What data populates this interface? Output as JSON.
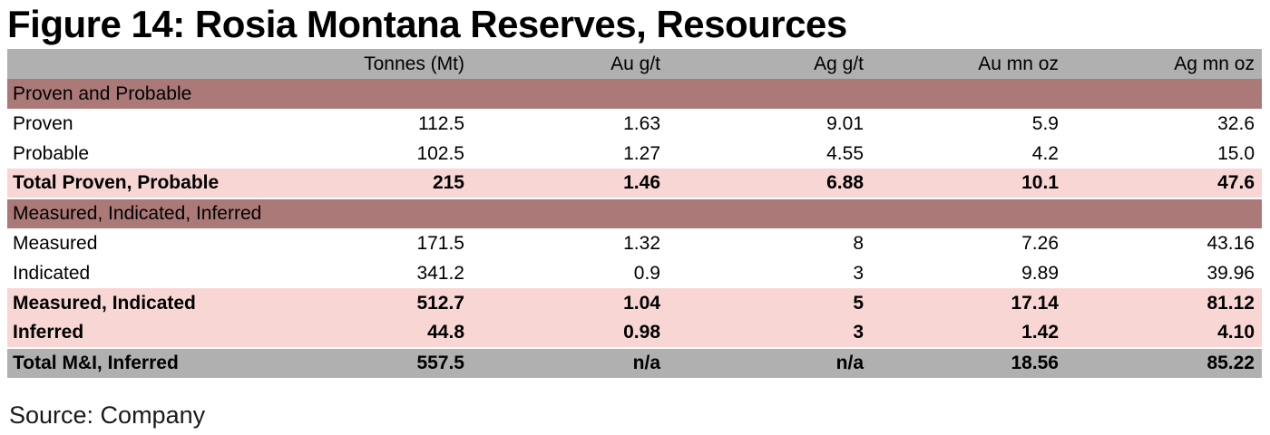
{
  "title": "Figure 14: Rosia Montana Reserves, Resources",
  "source": "Source: Company",
  "colors": {
    "header_gray": "#b0b0b0",
    "section_mauve": "#ab7a78",
    "total_pink": "#f8d6d4",
    "total_gray": "#b0b0b0",
    "text": "#000000"
  },
  "chart_data": {
    "type": "table",
    "title": "Figure 14: Rosia Montana Reserves, Resources",
    "columns": [
      "",
      "Tonnes (Mt)",
      "Au g/t",
      "Ag g/t",
      "Au mn oz",
      "Ag mn oz"
    ],
    "rows": [
      {
        "type": "section",
        "label": "Proven and Probable",
        "values": [],
        "sep": false
      },
      {
        "type": "data",
        "label": "Proven",
        "values": [
          "112.5",
          "1.63",
          "9.01",
          "5.9",
          "32.6"
        ],
        "sep": false
      },
      {
        "type": "data",
        "label": "Probable",
        "values": [
          "102.5",
          "1.27",
          "4.55",
          "4.2",
          "15.0"
        ],
        "sep": false
      },
      {
        "type": "total_pink",
        "label": "Total Proven, Probable",
        "values": [
          "215",
          "1.46",
          "6.88",
          "10.1",
          "47.6"
        ],
        "sep": false
      },
      {
        "type": "section",
        "label": "Measured, Indicated, Inferred",
        "values": [],
        "sep": true
      },
      {
        "type": "data",
        "label": "Measured",
        "values": [
          "171.5",
          "1.32",
          "8",
          "7.26",
          "43.16"
        ],
        "sep": false
      },
      {
        "type": "data",
        "label": "Indicated",
        "values": [
          "341.2",
          "0.9",
          "3",
          "9.89",
          "39.96"
        ],
        "sep": false
      },
      {
        "type": "total_pink",
        "label": "Measured, Indicated",
        "values": [
          "512.7",
          "1.04",
          "5",
          "17.14",
          "81.12"
        ],
        "sep": false
      },
      {
        "type": "total_pink",
        "label": "Inferred",
        "values": [
          "44.8",
          "0.98",
          "3",
          "1.42",
          "4.10"
        ],
        "sep": false
      },
      {
        "type": "total_gray",
        "label": "Total M&I, Inferred",
        "values": [
          "557.5",
          "n/a",
          "n/a",
          "18.56",
          "85.22"
        ],
        "sep": true
      }
    ]
  }
}
